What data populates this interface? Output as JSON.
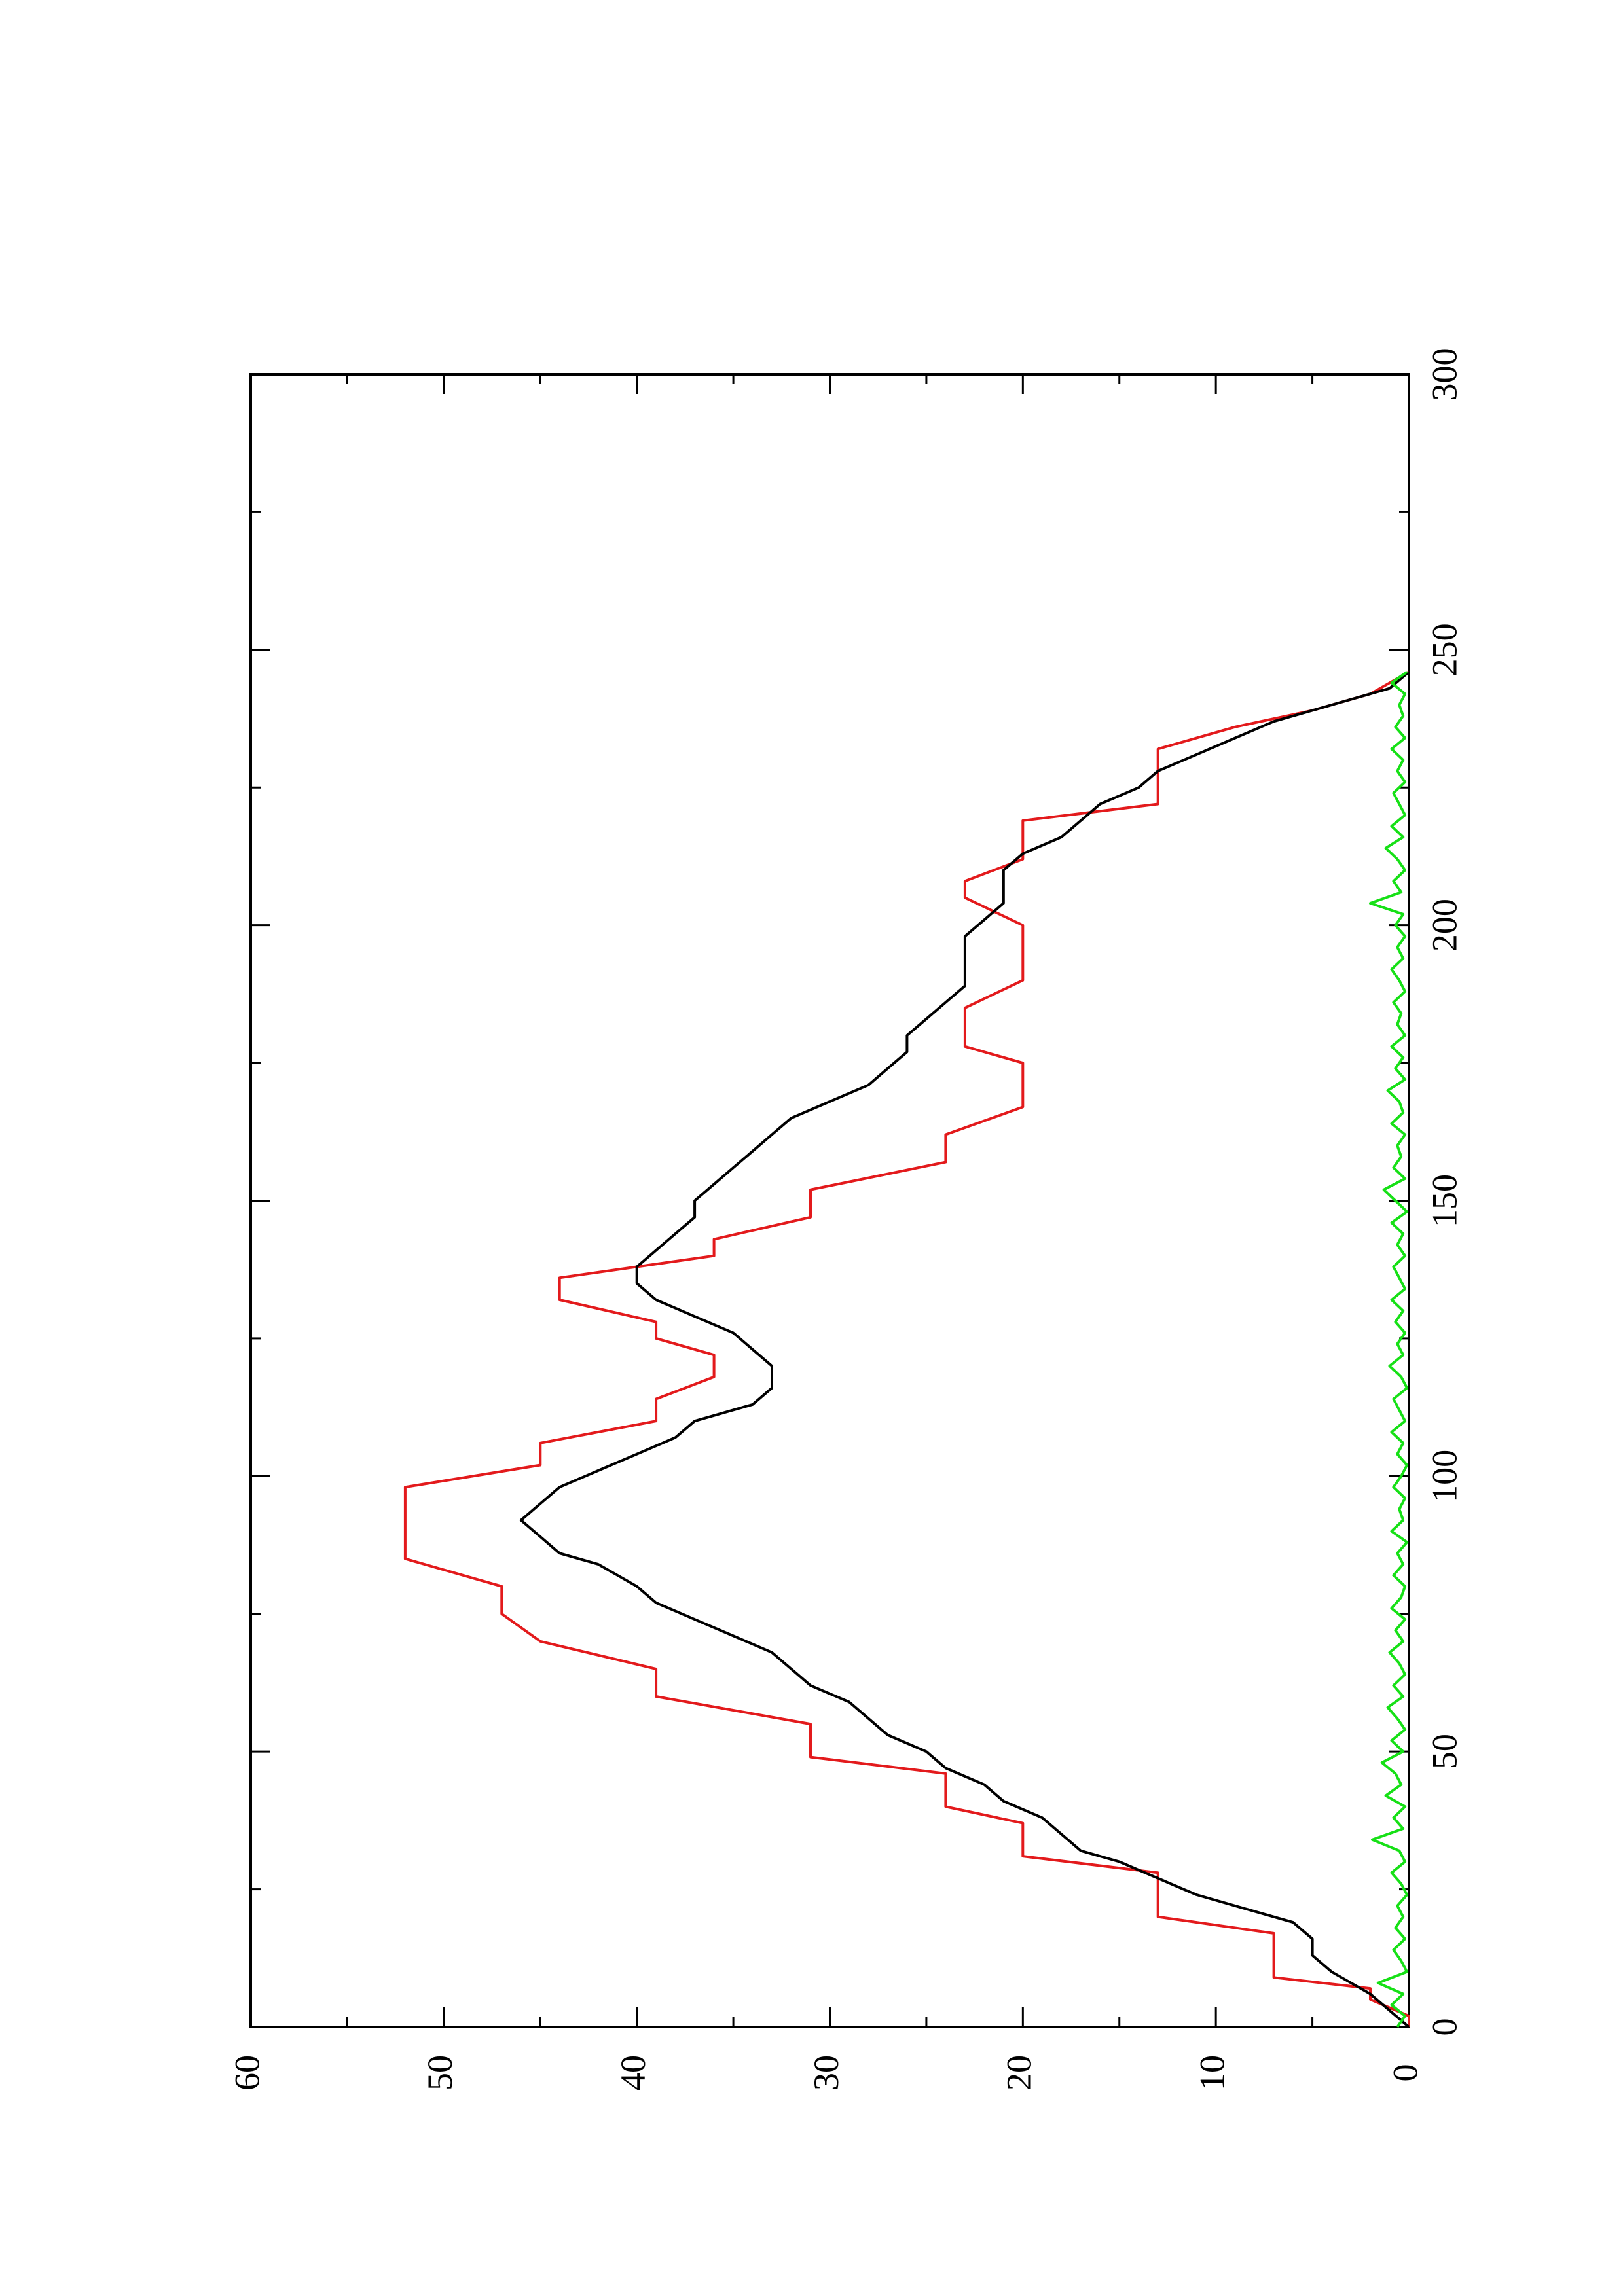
{
  "chart_data": {
    "type": "line",
    "title": "",
    "xlabel": "",
    "ylabel": "",
    "orientation": "rotated-90-ccw",
    "xlim": [
      0,
      300
    ],
    "ylim": [
      0,
      60
    ],
    "x_ticks": [
      0,
      50,
      100,
      150,
      200,
      250,
      300
    ],
    "y_ticks": [
      0,
      10,
      20,
      30,
      40,
      50,
      60
    ],
    "grid": false,
    "legend": "none",
    "colors": {
      "red": "#e31a1c",
      "black": "#000000",
      "green": "#16e016",
      "axis": "#000000"
    },
    "series": [
      {
        "color": "#e31a1c",
        "step": true,
        "x": [
          0,
          2,
          5,
          7,
          9,
          11,
          14,
          17,
          20,
          22,
          25,
          28,
          31,
          34,
          37,
          40,
          43,
          46,
          49,
          52,
          55,
          60,
          65,
          70,
          75,
          80,
          85,
          88,
          91,
          94,
          98,
          102,
          106,
          110,
          114,
          118,
          122,
          125,
          128,
          132,
          136,
          140,
          143,
          147,
          152,
          157,
          162,
          167,
          170,
          175,
          178,
          182,
          185,
          190,
          195,
          200,
          205,
          208,
          212,
          215,
          219,
          222,
          225,
          229,
          232,
          236,
          239,
          242,
          246
        ],
        "values": [
          0,
          0,
          2,
          2,
          7,
          7,
          7,
          7,
          13,
          13,
          13,
          13,
          20,
          20,
          20,
          24,
          24,
          24,
          31,
          31,
          31,
          39,
          39,
          45,
          47,
          47,
          52,
          52,
          52,
          52,
          52,
          45,
          45,
          39,
          39,
          36,
          36,
          39,
          39,
          44,
          44,
          36,
          36,
          31,
          31,
          24,
          24,
          20,
          20,
          20,
          23,
          23,
          23,
          20,
          20,
          20,
          23,
          23,
          20,
          20,
          20,
          13,
          13,
          13,
          13,
          9,
          5,
          2,
          0
        ]
      },
      {
        "color": "#000000",
        "step": false,
        "x": [
          0,
          3,
          6,
          8,
          10,
          13,
          16,
          19,
          21,
          24,
          27,
          30,
          32,
          35,
          38,
          41,
          44,
          47,
          50,
          53,
          56,
          59,
          62,
          65,
          68,
          71,
          74,
          77,
          80,
          82,
          84,
          86,
          89,
          92,
          95,
          98,
          101,
          104,
          107,
          110,
          113,
          116,
          118,
          120,
          123,
          126,
          129,
          132,
          135,
          138,
          141,
          144,
          147,
          150,
          153,
          156,
          159,
          162,
          165,
          168,
          171,
          174,
          177,
          180,
          183,
          186,
          189,
          192,
          195,
          198,
          201,
          204,
          207,
          210,
          213,
          216,
          219,
          222,
          225,
          228,
          231,
          234,
          237,
          240,
          243,
          246
        ],
        "values": [
          0,
          1,
          2,
          3,
          4,
          5,
          5,
          6,
          8,
          11,
          13,
          15,
          17,
          18,
          19,
          21,
          22,
          24,
          25,
          27,
          28,
          29,
          31,
          32,
          33,
          35,
          37,
          39,
          40,
          41,
          42,
          44,
          45,
          46,
          45,
          44,
          42,
          40,
          38,
          37,
          34,
          33,
          33,
          33,
          34,
          35,
          37,
          39,
          40,
          40,
          39,
          38,
          37,
          37,
          36,
          35,
          34,
          33,
          32,
          30,
          28,
          27,
          26,
          26,
          25,
          24,
          23,
          23,
          23,
          23,
          22,
          21,
          21,
          21,
          20,
          18,
          17,
          16,
          14,
          13,
          11,
          9,
          7,
          4,
          1,
          0
        ]
      },
      {
        "color": "#16e016",
        "step": false,
        "x": [
          0,
          2,
          4,
          6,
          8,
          10,
          12,
          14,
          16,
          18,
          20,
          22,
          24,
          26,
          28,
          30,
          32,
          34,
          36,
          38,
          40,
          42,
          44,
          46,
          48,
          50,
          52,
          54,
          56,
          58,
          60,
          62,
          64,
          66,
          68,
          70,
          72,
          74,
          76,
          78,
          80,
          82,
          84,
          86,
          88,
          90,
          92,
          94,
          96,
          98,
          100,
          102,
          104,
          106,
          108,
          110,
          112,
          114,
          116,
          118,
          120,
          122,
          124,
          126,
          128,
          130,
          132,
          134,
          136,
          138,
          140,
          142,
          144,
          146,
          148,
          150,
          152,
          154,
          156,
          158,
          160,
          162,
          164,
          166,
          168,
          170,
          172,
          174,
          176,
          178,
          180,
          182,
          184,
          186,
          188,
          190,
          192,
          194,
          196,
          198,
          200,
          202,
          204,
          206,
          208,
          210,
          212,
          214,
          216,
          218,
          220,
          222,
          224,
          226,
          228,
          230,
          232,
          234,
          236,
          238,
          240,
          242,
          244,
          246
        ],
        "values": [
          0.6,
          0.2,
          0.9,
          0.3,
          1.6,
          0.1,
          0.4,
          0.8,
          0.2,
          0.7,
          0.3,
          0.6,
          0.1,
          0.4,
          0.9,
          0.2,
          0.5,
          1.9,
          0.3,
          0.8,
          0.2,
          1.2,
          0.4,
          0.7,
          1.4,
          0.3,
          0.9,
          0.2,
          0.6,
          1.1,
          0.3,
          0.8,
          0.2,
          0.5,
          1.0,
          0.3,
          0.7,
          0.2,
          0.9,
          0.4,
          0.2,
          0.8,
          0.3,
          0.6,
          0.1,
          0.9,
          0.3,
          0.5,
          0.2,
          0.8,
          0.4,
          0.1,
          0.6,
          0.3,
          0.9,
          0.2,
          0.5,
          0.8,
          0.1,
          0.4,
          1.0,
          0.3,
          0.6,
          0.2,
          0.7,
          0.3,
          0.9,
          0.2,
          0.5,
          0.8,
          0.2,
          0.6,
          0.3,
          0.9,
          0.1,
          0.7,
          1.3,
          0.2,
          0.8,
          0.4,
          0.6,
          0.2,
          0.9,
          0.3,
          0.5,
          1.1,
          0.2,
          0.7,
          0.3,
          0.9,
          0.2,
          0.6,
          0.4,
          0.8,
          0.2,
          0.5,
          0.9,
          0.3,
          0.6,
          0.2,
          0.7,
          0.3,
          2.0,
          0.4,
          0.8,
          0.2,
          0.6,
          1.2,
          0.3,
          0.9,
          0.2,
          0.5,
          0.8,
          0.2,
          0.6,
          0.3,
          0.9,
          0.2,
          0.7,
          0.3,
          0.5,
          0.2,
          0.9,
          0.1
        ]
      }
    ]
  }
}
